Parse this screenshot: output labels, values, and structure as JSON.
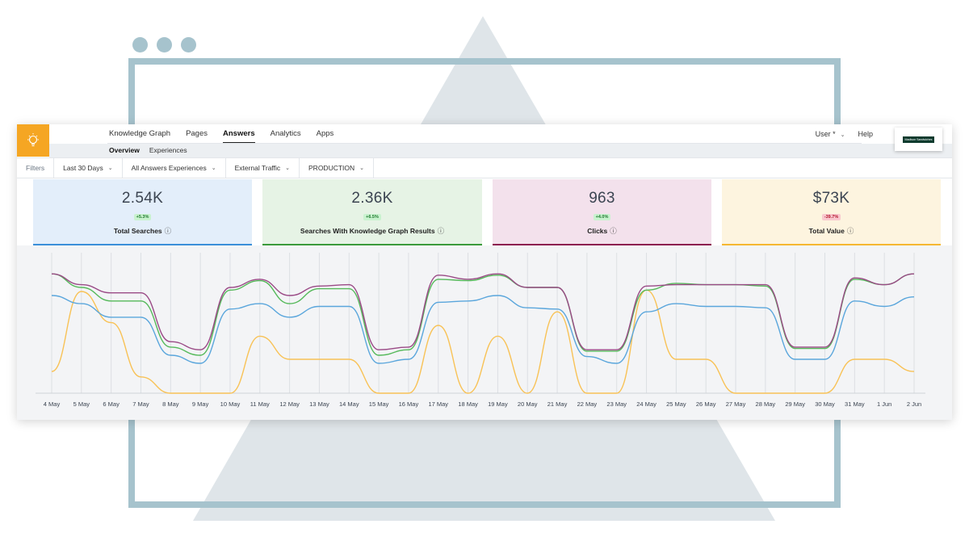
{
  "nav": {
    "tabs": [
      "Knowledge Graph",
      "Pages",
      "Answers",
      "Analytics",
      "Apps"
    ],
    "active_tab": "Answers",
    "subtabs": [
      "Overview",
      "Experiences"
    ],
    "active_subtab": "Overview",
    "user_label": "User *",
    "help_label": "Help",
    "brand_name": "Madison Sandwiches"
  },
  "filters": {
    "label": "Filters",
    "items": [
      "Last 30 Days",
      "All Answers Experiences",
      "External Traffic",
      "PRODUCTION"
    ]
  },
  "cards": [
    {
      "value": "2.54K",
      "change": "+5.3%",
      "label": "Total Searches",
      "bg": "#e3eefa",
      "accent": "#3b8fd9",
      "change_bg": "#c9f2cf",
      "change_color": "#1f7a2e"
    },
    {
      "value": "2.36K",
      "change": "+6.5%",
      "label": "Searches With Knowledge Graph Results",
      "bg": "#e6f3e5",
      "accent": "#3b9a3b",
      "change_bg": "#c9f2cf",
      "change_color": "#1f7a2e"
    },
    {
      "value": "963",
      "change": "+4.0%",
      "label": "Clicks",
      "bg": "#f3e1ec",
      "accent": "#8c1d4f",
      "change_bg": "#c9f2cf",
      "change_color": "#1f7a2e"
    },
    {
      "value": "$73K",
      "change": "-39.7%",
      "label": "Total Value",
      "bg": "#fdf4df",
      "accent": "#f5b731",
      "change_bg": "#f9c9cf",
      "change_color": "#b3162e"
    }
  ],
  "chart_data": {
    "type": "line",
    "categories": [
      "4 May",
      "5 May",
      "6 May",
      "7 May",
      "8 May",
      "9 May",
      "10 May",
      "11 May",
      "12 May",
      "13 May",
      "14 May",
      "15 May",
      "16 May",
      "17 May",
      "18 May",
      "19 May",
      "20 May",
      "21 May",
      "22 May",
      "23 May",
      "24 May",
      "25 May",
      "26 May",
      "27 May",
      "28 May",
      "29 May",
      "30 May",
      "31 May",
      "1 Jun",
      "2 Jun"
    ],
    "ylim": [
      0,
      100
    ],
    "grid": true,
    "series": [
      {
        "color": "#9a4a86",
        "values": [
          88,
          80,
          74,
          74,
          38,
          32,
          78,
          84,
          72,
          79,
          80,
          32,
          34,
          87,
          84,
          88,
          78,
          78,
          32,
          32,
          79,
          80,
          80,
          80,
          80,
          34,
          34,
          85,
          80,
          88
        ]
      },
      {
        "color": "#55b95a",
        "values": [
          88,
          78,
          68,
          68,
          34,
          28,
          76,
          83,
          66,
          77,
          77,
          28,
          32,
          84,
          83,
          87,
          78,
          78,
          31,
          31,
          76,
          81,
          80,
          80,
          79,
          33,
          33,
          84,
          80,
          88
        ]
      },
      {
        "color": "#5aa6dc",
        "values": [
          72,
          66,
          56,
          56,
          28,
          22,
          62,
          66,
          56,
          64,
          64,
          22,
          25,
          67,
          68,
          72,
          63,
          62,
          27,
          22,
          60,
          66,
          64,
          64,
          63,
          25,
          25,
          68,
          64,
          71
        ]
      },
      {
        "color": "#f8c256",
        "values": [
          16,
          75,
          52,
          12,
          0,
          0,
          0,
          42,
          25,
          25,
          25,
          0,
          0,
          50,
          0,
          42,
          0,
          60,
          0,
          0,
          76,
          25,
          25,
          0,
          0,
          0,
          0,
          25,
          25,
          16
        ]
      }
    ]
  }
}
